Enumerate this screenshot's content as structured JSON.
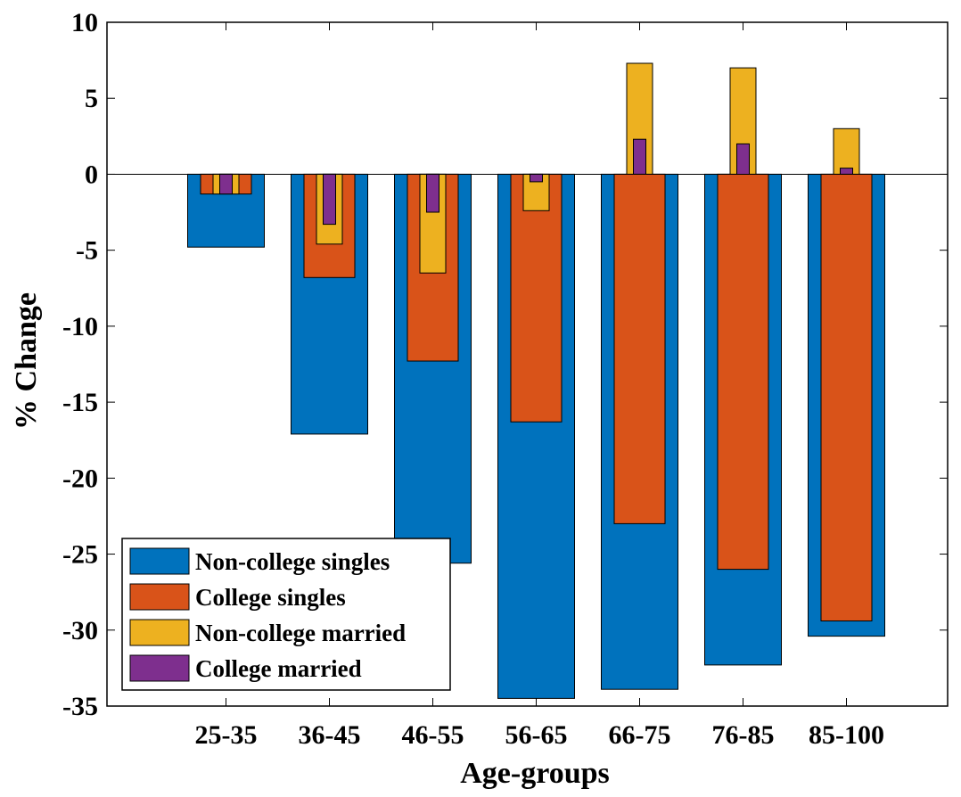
{
  "chart_data": {
    "type": "bar",
    "xlabel": "Age-groups",
    "ylabel": "% Change",
    "ylim": [
      -35,
      10
    ],
    "yticks": [
      10,
      5,
      0,
      -5,
      -10,
      -15,
      -20,
      -25,
      -30,
      -35
    ],
    "ytick_labels": [
      "10",
      "5",
      "0",
      "-5",
      "-10",
      "-15",
      "-20",
      "-25",
      "-30",
      "-35"
    ],
    "categories": [
      "25-35",
      "36-45",
      "46-55",
      "56-65",
      "66-75",
      "76-85",
      "85-100"
    ],
    "grid": false,
    "legend_position": "bottom-left",
    "series": [
      {
        "name": "Non-college singles",
        "color": "#0072BD",
        "values": [
          -4.8,
          -17.1,
          -25.6,
          -34.5,
          -33.9,
          -32.3,
          -30.4
        ]
      },
      {
        "name": "College singles",
        "color": "#D95319",
        "values": [
          -1.3,
          -6.8,
          -12.3,
          -16.3,
          -23.0,
          -26.0,
          -29.4
        ]
      },
      {
        "name": "Non-college married",
        "color": "#EDB120",
        "values": [
          -1.3,
          -4.6,
          -6.5,
          -2.4,
          7.3,
          7.0,
          3.0
        ]
      },
      {
        "name": "College married",
        "color": "#7E2F8E",
        "values": [
          -1.3,
          -3.3,
          -2.5,
          -0.5,
          2.3,
          2.0,
          0.4
        ]
      }
    ]
  }
}
